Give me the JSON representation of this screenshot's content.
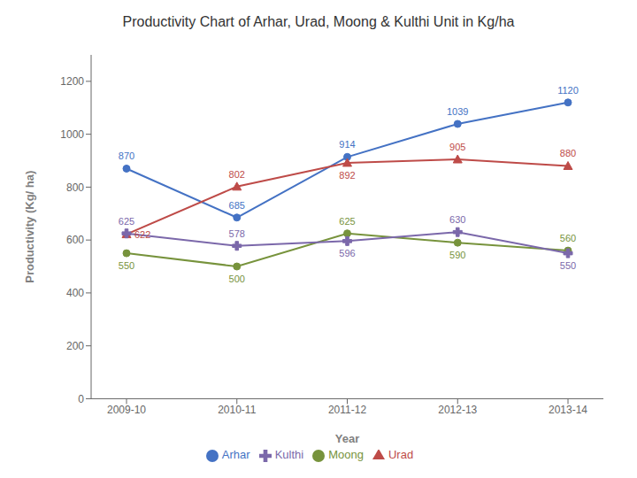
{
  "chart_data": {
    "type": "line",
    "title": "Productivity Chart  of Arhar, Urad, Moong & Kulthi Unit in Kg/ha",
    "xlabel": "Year",
    "ylabel": "Productivity (Kg/ ha)",
    "categories": [
      "2009-10",
      "2010-11",
      "2011-12",
      "2012-13",
      "2013-14"
    ],
    "series": [
      {
        "name": "Arhar",
        "color": "#4472C4",
        "marker": "circle",
        "values": [
          870,
          685,
          914,
          1039,
          1120
        ]
      },
      {
        "name": "Urad",
        "color": "#BE4B48",
        "marker": "triangle",
        "values": [
          622,
          802,
          892,
          905,
          880
        ]
      },
      {
        "name": "Moong",
        "color": "#77933C",
        "marker": "circle",
        "values": [
          550,
          500,
          625,
          590,
          560
        ]
      },
      {
        "name": "Kulthi",
        "color": "#7B68AA",
        "marker": "plus",
        "values": [
          625,
          578,
          596,
          630,
          550
        ]
      }
    ],
    "ylim": [
      0,
      1300
    ],
    "yticks": [
      0,
      200,
      400,
      600,
      800,
      1000,
      1200
    ],
    "grid": false,
    "data_labels": true,
    "legend": "bottom"
  }
}
